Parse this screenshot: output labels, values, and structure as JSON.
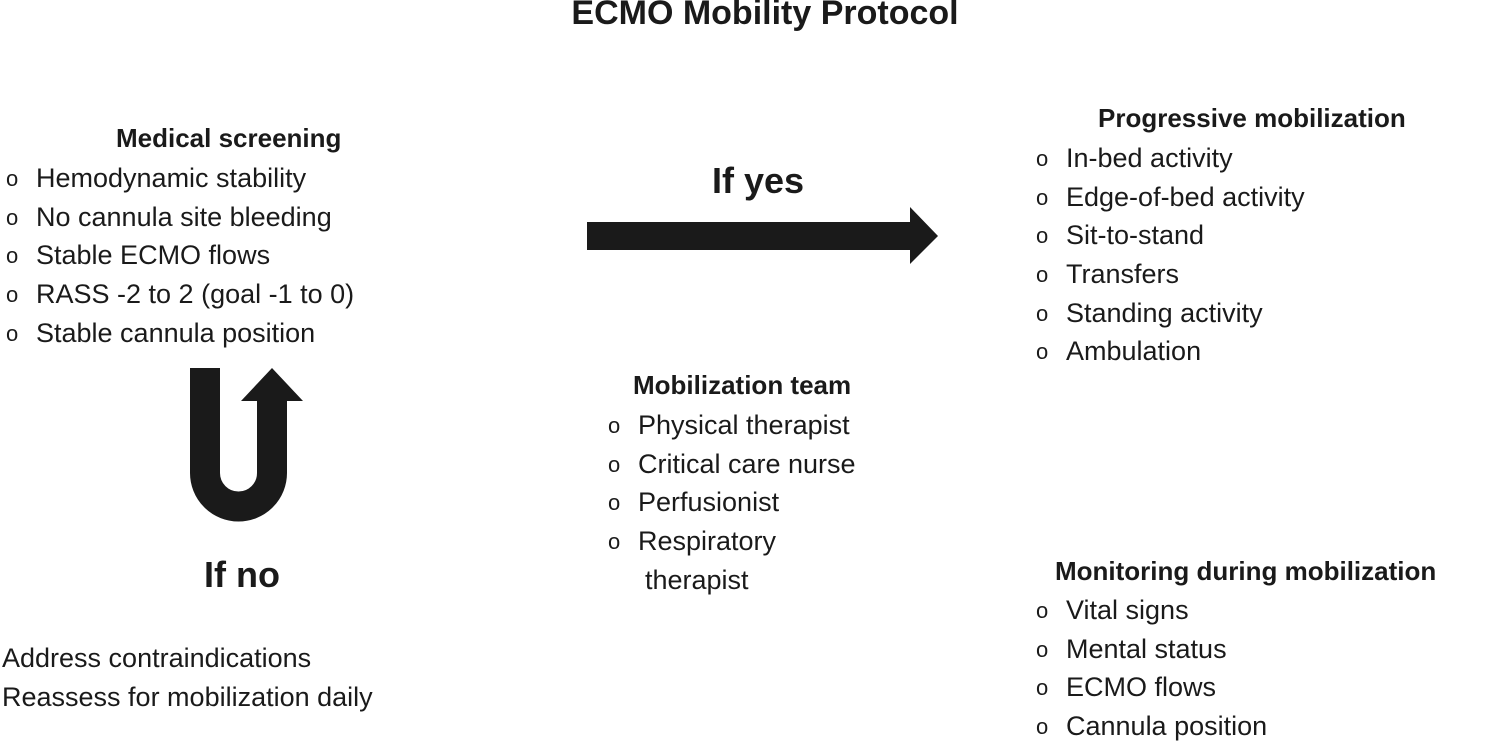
{
  "title": "ECMO Mobility Protocol",
  "medical_screening": {
    "heading": "Medical screening",
    "items": [
      "Hemodynamic stability",
      "No cannula site bleeding",
      "Stable ECMO flows",
      "RASS -2 to 2 (goal -1 to 0)",
      "Stable cannula position"
    ]
  },
  "if_yes": "If yes",
  "if_no": "If no",
  "no_actions": [
    "Address contraindications",
    "Reassess for mobilization daily"
  ],
  "progressive_mobilization": {
    "heading": "Progressive mobilization",
    "items": [
      "In-bed activity",
      "Edge-of-bed activity",
      "Sit-to-stand",
      "Transfers",
      "Standing activity",
      "Ambulation"
    ]
  },
  "mobilization_team": {
    "heading": "Mobilization team",
    "items": [
      "Physical therapist",
      "Critical care nurse",
      "Perfusionist",
      "Respiratory",
      "therapist"
    ]
  },
  "monitoring": {
    "heading": "Monitoring during mobilization",
    "items": [
      "Vital signs",
      "Mental status",
      "ECMO flows",
      "Cannula position"
    ]
  },
  "colors": {
    "arrow": "#1a1a1a"
  }
}
